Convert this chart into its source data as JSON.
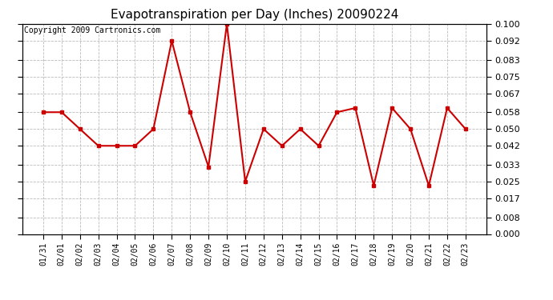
{
  "title": "Evapotranspiration per Day (Inches) 20090224",
  "copyright": "Copyright 2009 Cartronics.com",
  "x_labels": [
    "01/31",
    "02/01",
    "02/02",
    "02/03",
    "02/04",
    "02/05",
    "02/06",
    "02/07",
    "02/08",
    "02/09",
    "02/10",
    "02/11",
    "02/12",
    "02/13",
    "02/14",
    "02/15",
    "02/16",
    "02/17",
    "02/18",
    "02/19",
    "02/20",
    "02/21",
    "02/22",
    "02/23"
  ],
  "y_values": [
    0.058,
    0.058,
    0.05,
    0.042,
    0.042,
    0.042,
    0.05,
    0.092,
    0.058,
    0.032,
    0.1,
    0.025,
    0.05,
    0.042,
    0.05,
    0.042,
    0.058,
    0.06,
    0.023,
    0.06,
    0.05,
    0.023,
    0.06,
    0.05
  ],
  "y_ticks": [
    0.0,
    0.008,
    0.017,
    0.025,
    0.033,
    0.042,
    0.05,
    0.058,
    0.067,
    0.075,
    0.083,
    0.092,
    0.1
  ],
  "y_min": 0.0,
  "y_max": 0.1,
  "line_color": "#cc0000",
  "marker": "s",
  "marker_size": 3,
  "line_width": 1.5,
  "bg_color": "#ffffff",
  "plot_bg_color": "#ffffff",
  "grid_color": "#bbbbbb",
  "title_fontsize": 11,
  "copyright_fontsize": 7
}
